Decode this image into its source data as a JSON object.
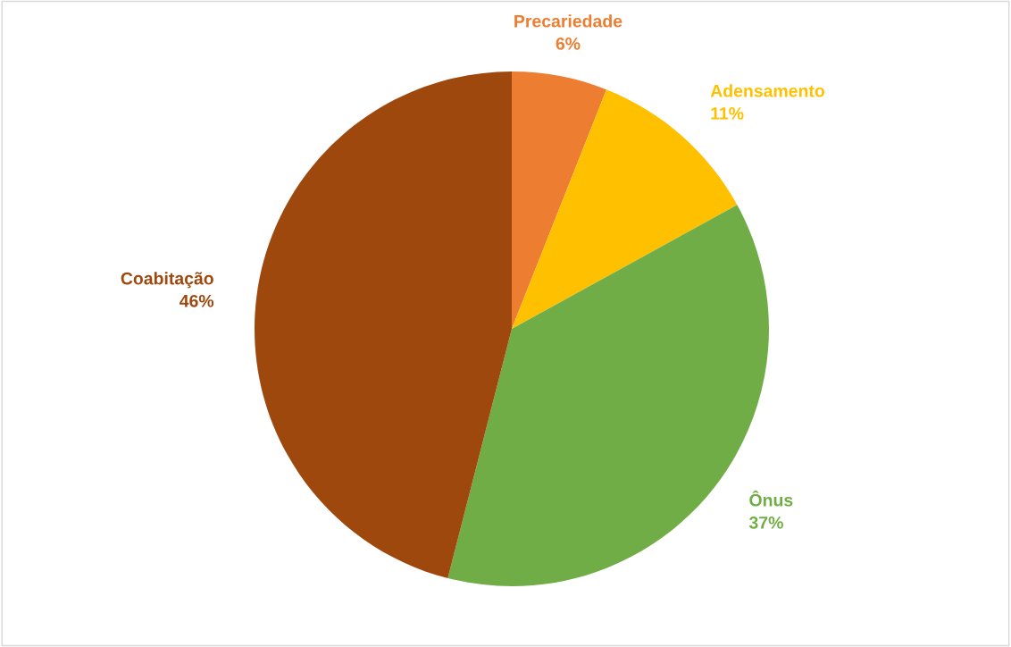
{
  "chart_data": {
    "type": "pie",
    "categories": [
      "Precariedade",
      "Adensamento",
      "Ônus",
      "Coabitação"
    ],
    "values": [
      6,
      11,
      37,
      46
    ],
    "value_labels": [
      "6%",
      "11%",
      "37%",
      "46%"
    ],
    "colors": [
      "#ed7d31",
      "#ffc000",
      "#70ad47",
      "#9e480e"
    ],
    "legend": false
  }
}
